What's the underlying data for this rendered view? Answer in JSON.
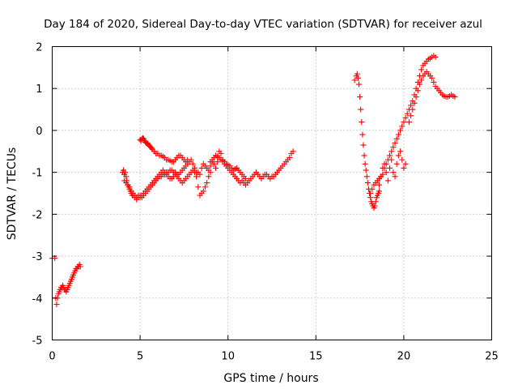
{
  "chart_data": {
    "type": "scatter",
    "title": "Day 184 of 2020, Sidereal Day-to-day VTEC variation (SDTVAR) for receiver azul",
    "xlabel": "GPS time / hours",
    "ylabel": "SDTVAR / TECUs",
    "xlim": [
      0,
      25
    ],
    "ylim": [
      -5,
      2
    ],
    "x_ticks": [
      0,
      5,
      10,
      15,
      20,
      25
    ],
    "y_ticks": [
      -5,
      -4,
      -3,
      -2,
      -1,
      0,
      1,
      2
    ],
    "grid": true,
    "marker": "plus",
    "series_color": "#ff0000",
    "series": [
      {
        "name": "SDTVAR",
        "segments": [
          {
            "x": [
              0.0,
              0.15
            ],
            "y": [
              -3.05,
              -3.05
            ]
          },
          {
            "x": [
              0.2,
              0.25,
              0.3,
              0.35,
              0.4,
              0.45,
              0.5,
              0.55,
              0.6,
              0.65,
              0.7,
              0.75,
              0.8,
              0.85,
              0.9,
              0.95,
              1.0,
              1.05,
              1.1,
              1.15,
              1.2,
              1.25,
              1.3,
              1.35,
              1.4,
              1.45,
              1.5,
              1.55,
              1.6
            ],
            "y": [
              -4.0,
              -4.15,
              -4.0,
              -3.9,
              -3.85,
              -3.8,
              -3.75,
              -3.75,
              -3.7,
              -3.75,
              -3.8,
              -3.8,
              -3.85,
              -3.8,
              -3.75,
              -3.7,
              -3.65,
              -3.6,
              -3.55,
              -3.5,
              -3.45,
              -3.4,
              -3.35,
              -3.3,
              -3.3,
              -3.25,
              -3.25,
              -3.2,
              -3.25
            ]
          },
          {
            "x": [
              4.0,
              4.05,
              4.1,
              4.15,
              4.2,
              4.25,
              4.3,
              4.35,
              4.4,
              4.45,
              4.5,
              4.55,
              4.6,
              4.7,
              4.8,
              4.9,
              5.0,
              5.1,
              5.2,
              5.3,
              5.4,
              5.5,
              5.6,
              5.7,
              5.8,
              5.9,
              6.0,
              6.1,
              6.2,
              6.3,
              6.4,
              6.5,
              6.6,
              6.7,
              6.8,
              6.9,
              7.0,
              7.1,
              7.2,
              7.3,
              7.4,
              7.5,
              7.6,
              7.7,
              7.8,
              7.9,
              8.0,
              8.1,
              8.2,
              8.3,
              8.4
            ],
            "y": [
              -1.0,
              -0.95,
              -1.05,
              -1.0,
              -1.1,
              -1.2,
              -1.3,
              -1.35,
              -1.4,
              -1.45,
              -1.5,
              -1.55,
              -1.5,
              -1.55,
              -1.6,
              -1.55,
              -1.55,
              -1.6,
              -1.55,
              -1.5,
              -1.45,
              -1.4,
              -1.35,
              -1.3,
              -1.25,
              -1.2,
              -1.15,
              -1.1,
              -1.1,
              -1.05,
              -1.05,
              -1.0,
              -1.0,
              -0.95,
              -0.95,
              -1.0,
              -1.0,
              -1.05,
              -1.05,
              -1.0,
              -0.95,
              -0.9,
              -0.85,
              -0.8,
              -0.75,
              -0.7,
              -0.8,
              -0.9,
              -1.0,
              -1.0,
              -1.05
            ]
          },
          {
            "x": [
              4.1,
              4.2,
              4.3,
              4.4,
              4.5,
              4.6,
              4.7,
              4.8,
              4.9,
              5.0,
              5.1,
              5.2,
              5.3,
              5.4,
              5.5,
              5.6,
              5.7,
              5.8,
              5.9,
              6.0,
              6.1,
              6.2,
              6.3,
              6.4,
              6.5,
              6.6,
              6.7,
              6.8,
              6.9,
              7.0,
              7.1,
              7.2,
              7.3,
              7.4,
              7.5,
              7.6,
              7.7,
              7.8,
              7.9,
              8.0,
              8.1,
              8.2,
              8.3,
              8.4,
              8.5,
              8.6,
              8.7,
              8.8,
              8.9,
              9.0
            ],
            "y": [
              -1.2,
              -1.25,
              -1.3,
              -1.35,
              -1.45,
              -1.55,
              -1.6,
              -1.65,
              -1.6,
              -1.6,
              -1.55,
              -1.5,
              -1.45,
              -1.4,
              -1.35,
              -1.3,
              -1.25,
              -1.2,
              -1.15,
              -1.1,
              -1.05,
              -1.0,
              -0.95,
              -1.0,
              -1.05,
              -1.1,
              -1.15,
              -1.15,
              -1.1,
              -1.05,
              -1.1,
              -1.15,
              -1.2,
              -1.25,
              -1.2,
              -1.15,
              -1.1,
              -1.05,
              -1.0,
              -0.95,
              -1.0,
              -1.1,
              -1.35,
              -1.55,
              -1.5,
              -1.45,
              -1.35,
              -1.25,
              -1.1,
              -1.0
            ]
          },
          {
            "x": [
              5.0,
              5.05,
              5.1,
              5.15,
              5.2,
              5.25,
              5.3,
              5.35,
              5.4,
              5.45,
              5.5,
              5.55,
              5.6,
              5.65,
              5.7,
              5.8,
              5.9,
              6.0,
              6.1,
              6.2,
              6.3,
              6.4,
              6.5,
              6.6,
              6.7,
              6.8,
              6.9,
              7.0,
              7.1,
              7.2,
              7.3,
              7.4,
              7.5,
              7.6,
              7.7
            ],
            "y": [
              -0.22,
              -0.25,
              -0.2,
              -0.18,
              -0.2,
              -0.25,
              -0.28,
              -0.3,
              -0.3,
              -0.32,
              -0.35,
              -0.38,
              -0.4,
              -0.42,
              -0.45,
              -0.5,
              -0.55,
              -0.55,
              -0.6,
              -0.6,
              -0.62,
              -0.65,
              -0.7,
              -0.7,
              -0.72,
              -0.75,
              -0.75,
              -0.7,
              -0.65,
              -0.6,
              -0.6,
              -0.65,
              -0.7,
              -0.75,
              -0.7
            ]
          },
          {
            "x": [
              8.5,
              8.6,
              8.7,
              8.8,
              8.9,
              9.0,
              9.1,
              9.2,
              9.3,
              9.4,
              9.5,
              9.6,
              9.7,
              9.8,
              9.9,
              10.0,
              10.1,
              10.2,
              10.3,
              10.4,
              10.5,
              10.6,
              10.7,
              10.8,
              10.9,
              11.0,
              11.1,
              11.2,
              11.3,
              11.4,
              11.5,
              11.6,
              11.7,
              11.8,
              11.9,
              12.0,
              12.1,
              12.2,
              12.3,
              12.4,
              12.5,
              12.6,
              12.7,
              12.8,
              12.9,
              13.0,
              13.1,
              13.2,
              13.3,
              13.4,
              13.5,
              13.6,
              13.7
            ],
            "y": [
              -0.9,
              -0.8,
              -0.85,
              -0.9,
              -0.95,
              -0.85,
              -0.75,
              -0.8,
              -0.9,
              -0.75,
              -0.5,
              -0.55,
              -0.7,
              -0.8,
              -0.85,
              -0.9,
              -0.95,
              -1.0,
              -1.05,
              -1.1,
              -1.15,
              -1.2,
              -1.25,
              -1.2,
              -1.25,
              -1.3,
              -1.25,
              -1.2,
              -1.15,
              -1.1,
              -1.05,
              -1.0,
              -1.05,
              -1.1,
              -1.15,
              -1.1,
              -1.05,
              -1.05,
              -1.1,
              -1.15,
              -1.1,
              -1.1,
              -1.05,
              -1.0,
              -0.95,
              -0.9,
              -0.85,
              -0.8,
              -0.75,
              -0.7,
              -0.65,
              -0.55,
              -0.5
            ]
          },
          {
            "x": [
              9.0,
              9.1,
              9.2,
              9.3,
              9.4,
              9.5,
              9.6,
              9.7,
              9.8,
              9.9,
              10.0,
              10.1,
              10.2,
              10.3,
              10.4,
              10.5,
              10.6,
              10.7,
              10.8,
              10.9,
              11.0
            ],
            "y": [
              -0.75,
              -0.7,
              -0.65,
              -0.6,
              -0.62,
              -0.65,
              -0.7,
              -0.72,
              -0.75,
              -0.8,
              -0.82,
              -0.85,
              -0.9,
              -0.95,
              -0.92,
              -0.9,
              -0.95,
              -1.0,
              -1.05,
              -1.1,
              -1.15
            ]
          },
          {
            "x": [
              17.2,
              17.3,
              17.35,
              17.4,
              17.45,
              17.5,
              17.55,
              17.6,
              17.65,
              17.7,
              17.75,
              17.8,
              17.85,
              17.9,
              17.95,
              18.0,
              18.05,
              18.1,
              18.15,
              18.2,
              18.25,
              18.3,
              18.35,
              18.4,
              18.45,
              18.5,
              18.55,
              18.6
            ],
            "y": [
              1.2,
              1.3,
              1.35,
              1.25,
              1.1,
              0.8,
              0.5,
              0.2,
              -0.1,
              -0.35,
              -0.6,
              -0.8,
              -0.95,
              -1.1,
              -1.25,
              -1.4,
              -1.5,
              -1.6,
              -1.7,
              -1.75,
              -1.8,
              -1.85,
              -1.8,
              -1.7,
              -1.6,
              -1.55,
              -1.5,
              -1.45
            ]
          },
          {
            "x": [
              18.1,
              18.2,
              18.3,
              18.4,
              18.5,
              18.6,
              18.7,
              18.8,
              18.9,
              19.0,
              19.1,
              19.2,
              19.3,
              19.4,
              19.5,
              19.6,
              19.7,
              19.8,
              19.9,
              20.0,
              20.1,
              20.2,
              20.3,
              20.4,
              20.5,
              20.6,
              20.7,
              20.8,
              20.9,
              21.0,
              21.1,
              21.2,
              21.3,
              21.4,
              21.5,
              21.6,
              21.7,
              21.8
            ],
            "y": [
              -1.5,
              -1.4,
              -1.3,
              -1.25,
              -1.2,
              -1.15,
              -1.1,
              -1.05,
              -0.9,
              -0.8,
              -0.7,
              -0.6,
              -0.5,
              -0.4,
              -0.3,
              -0.2,
              -0.1,
              0.0,
              0.1,
              0.2,
              0.3,
              0.4,
              0.5,
              0.6,
              0.7,
              0.85,
              1.0,
              1.15,
              1.3,
              1.45,
              1.55,
              1.6,
              1.65,
              1.7,
              1.72,
              1.75,
              1.78,
              1.75
            ]
          },
          {
            "x": [
              18.6,
              18.7,
              18.8,
              18.9,
              19.0,
              19.1,
              19.2,
              19.3,
              19.4,
              19.5,
              19.6,
              19.7,
              19.8,
              19.9,
              20.0,
              20.1
            ],
            "y": [
              -1.3,
              -1.1,
              -0.9,
              -0.8,
              -1.0,
              -1.2,
              -0.9,
              -0.7,
              -1.0,
              -1.1,
              -0.8,
              -0.6,
              -0.5,
              -0.7,
              -0.9,
              -0.8
            ]
          },
          {
            "x": [
              20.3,
              20.4,
              20.5,
              20.6,
              20.7,
              20.8,
              20.9,
              21.0,
              21.1,
              21.2,
              21.3,
              21.4,
              21.5,
              21.6,
              21.7,
              21.8,
              21.9,
              22.0,
              22.1,
              22.2,
              22.3,
              22.4,
              22.5,
              22.6,
              22.7,
              22.8,
              22.9
            ],
            "y": [
              0.2,
              0.35,
              0.5,
              0.65,
              0.8,
              0.95,
              1.1,
              1.2,
              1.3,
              1.35,
              1.4,
              1.35,
              1.3,
              1.25,
              1.15,
              1.05,
              1.0,
              0.95,
              0.9,
              0.85,
              0.82,
              0.8,
              0.8,
              0.82,
              0.85,
              0.82,
              0.8
            ]
          }
        ]
      }
    ]
  }
}
